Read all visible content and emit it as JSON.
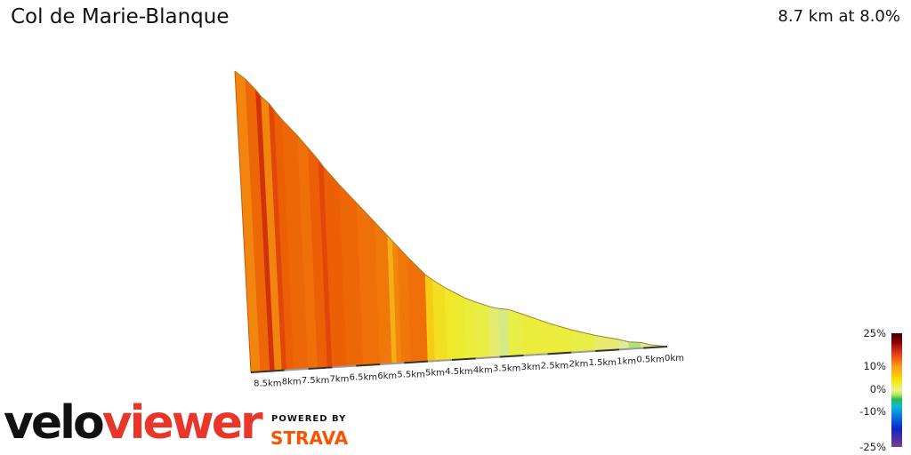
{
  "header": {
    "title": "Col de Marie-Blanque",
    "stats": "8.7 km at 8.0%"
  },
  "branding": {
    "logo_velo": "velo",
    "logo_viewer": "viewer",
    "powered_by": "POWERED BY",
    "strava": "STRAVA"
  },
  "legend": {
    "ticks": [
      "25%",
      "10%",
      "0%",
      "-10%",
      "-25%"
    ]
  },
  "colors": {
    "velo_red": "#e8362a",
    "strava_orange": "#fc5200"
  },
  "chart_data": {
    "type": "area",
    "title": "Col de Marie-Blanque",
    "subtitle": "8.7 km at 8.0%",
    "x_tick_labels": [
      "8.5km",
      "8km",
      "7.5km",
      "7km",
      "6.5km",
      "6km",
      "5.5km",
      "5km",
      "4.5km",
      "4km",
      "3.5km",
      "3km",
      "2.5km",
      "2km",
      "1.5km",
      "1km",
      "0.5km",
      "0km"
    ],
    "x_ticks": [
      8.5,
      8,
      7.5,
      7,
      6.5,
      6,
      5.5,
      5,
      4.5,
      4,
      3.5,
      3,
      2.5,
      2,
      1.5,
      1,
      0.5,
      0
    ],
    "xlim": [
      0,
      8.7
    ],
    "gradient_legend_range": [
      -25,
      25
    ],
    "series": [
      {
        "segments": [
          {
            "from": 8.7,
            "to": 8.5,
            "gradient": 9.0,
            "rise": 6
          },
          {
            "from": 8.5,
            "to": 8.3,
            "gradient": 10.5,
            "rise": 8
          },
          {
            "from": 8.3,
            "to": 8.2,
            "gradient": 14.0,
            "rise": 5
          },
          {
            "from": 8.2,
            "to": 8.05,
            "gradient": 9.0,
            "rise": 5
          },
          {
            "from": 8.05,
            "to": 7.95,
            "gradient": 12.5,
            "rise": 5
          },
          {
            "from": 7.95,
            "to": 7.8,
            "gradient": 11.0,
            "rise": 7
          },
          {
            "from": 7.8,
            "to": 7.5,
            "gradient": 10.5,
            "rise": 12
          },
          {
            "from": 7.5,
            "to": 7.3,
            "gradient": 10.0,
            "rise": 9
          },
          {
            "from": 7.3,
            "to": 7.1,
            "gradient": 11.0,
            "rise": 9
          },
          {
            "from": 7.1,
            "to": 7.0,
            "gradient": 12.5,
            "rise": 5
          },
          {
            "from": 7.0,
            "to": 6.7,
            "gradient": 11.0,
            "rise": 13
          },
          {
            "from": 6.7,
            "to": 6.35,
            "gradient": 10.5,
            "rise": 14
          },
          {
            "from": 6.35,
            "to": 6.0,
            "gradient": 10.0,
            "rise": 14
          },
          {
            "from": 6.0,
            "to": 5.75,
            "gradient": 9.5,
            "rise": 10
          },
          {
            "from": 5.75,
            "to": 5.65,
            "gradient": 7.5,
            "rise": 4
          },
          {
            "from": 5.65,
            "to": 5.55,
            "gradient": 9.0,
            "rise": 4
          },
          {
            "from": 5.55,
            "to": 5.35,
            "gradient": 9.5,
            "rise": 8
          },
          {
            "from": 5.35,
            "to": 5.0,
            "gradient": 10.0,
            "rise": 13
          },
          {
            "from": 5.0,
            "to": 4.85,
            "gradient": 6.5,
            "rise": 4
          },
          {
            "from": 4.85,
            "to": 4.6,
            "gradient": 5.5,
            "rise": 6
          },
          {
            "from": 4.6,
            "to": 4.4,
            "gradient": 5.0,
            "rise": 4
          },
          {
            "from": 4.4,
            "to": 4.2,
            "gradient": 4.5,
            "rise": 4
          },
          {
            "from": 4.2,
            "to": 4.0,
            "gradient": 4.0,
            "rise": 3
          },
          {
            "from": 4.0,
            "to": 3.7,
            "gradient": 3.5,
            "rise": 4
          },
          {
            "from": 3.7,
            "to": 3.5,
            "gradient": 3.0,
            "rise": 2
          },
          {
            "from": 3.5,
            "to": 3.3,
            "gradient": 2.0,
            "rise": 1
          },
          {
            "from": 3.3,
            "to": 3.0,
            "gradient": 3.5,
            "rise": 4
          },
          {
            "from": 3.0,
            "to": 2.5,
            "gradient": 4.0,
            "rise": 7
          },
          {
            "from": 2.5,
            "to": 2.0,
            "gradient": 4.0,
            "rise": 6
          },
          {
            "from": 2.0,
            "to": 1.5,
            "gradient": 3.5,
            "rise": 5
          },
          {
            "from": 1.5,
            "to": 1.0,
            "gradient": 3.0,
            "rise": 4
          },
          {
            "from": 1.0,
            "to": 0.8,
            "gradient": 2.5,
            "rise": 2
          },
          {
            "from": 0.8,
            "to": 0.55,
            "gradient": 1.0,
            "rise": 1
          },
          {
            "from": 0.55,
            "to": 0.35,
            "gradient": 2.5,
            "rise": 2
          },
          {
            "from": 0.35,
            "to": 0.0,
            "gradient": 2.0,
            "rise": 2
          }
        ]
      }
    ]
  }
}
